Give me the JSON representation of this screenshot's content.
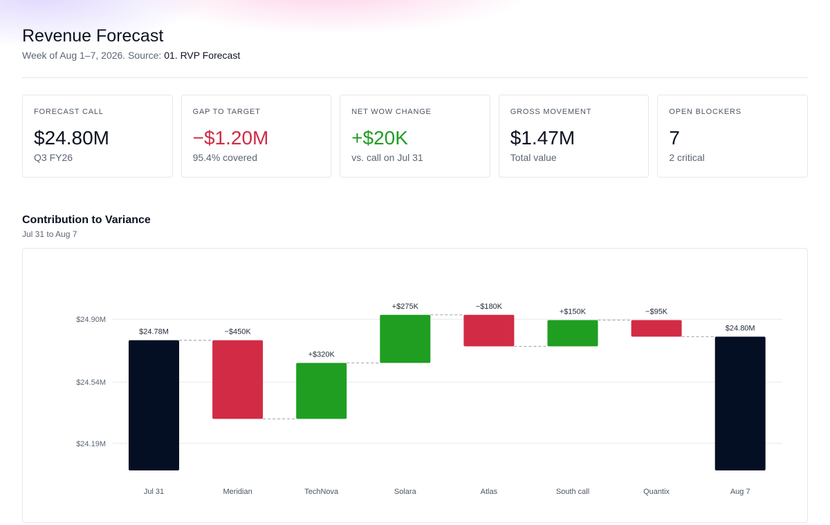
{
  "header": {
    "title": "Revenue Forecast",
    "subtitle_prefix": "Week of Aug 1–7, 2026. Source: ",
    "source": "01. RVP Forecast"
  },
  "kpis": [
    {
      "label": "FORECAST CALL",
      "value": "$24.80M",
      "sub": "Q3 FY26",
      "tone": "neutral"
    },
    {
      "label": "GAP TO TARGET",
      "value": "−$1.20M",
      "sub": "95.4% covered",
      "tone": "negative"
    },
    {
      "label": "NET WOW CHANGE",
      "value": "+$20K",
      "sub": "vs. call on Jul 31",
      "tone": "positive"
    },
    {
      "label": "GROSS MOVEMENT",
      "value": "$1.47M",
      "sub": "Total value",
      "tone": "neutral"
    },
    {
      "label": "OPEN BLOCKERS",
      "value": "7",
      "sub": "2 critical",
      "tone": "neutral"
    }
  ],
  "section": {
    "title": "Contribution to Variance",
    "subtitle": "Jul 31 to Aug 7"
  },
  "colors": {
    "total": "#050f24",
    "increase": "#1f9e22",
    "decrease": "#d22b45",
    "grid": "#e6e8ec",
    "connector": "#9aa1ab"
  },
  "chart_data": {
    "type": "bar",
    "subtype": "waterfall",
    "categories": [
      "Jul 31",
      "Meridian",
      "TechNova",
      "Solara",
      "Atlas",
      "South call",
      "Quantix",
      "Aug 7"
    ],
    "steps": [
      {
        "category": "Jul 31",
        "kind": "total",
        "value": 24.78,
        "label": "$24.78M"
      },
      {
        "category": "Meridian",
        "kind": "delta",
        "value": -0.45,
        "label": "−$450K"
      },
      {
        "category": "TechNova",
        "kind": "delta",
        "value": 0.32,
        "label": "+$320K"
      },
      {
        "category": "Solara",
        "kind": "delta",
        "value": 0.275,
        "label": "+$275K"
      },
      {
        "category": "Atlas",
        "kind": "delta",
        "value": -0.18,
        "label": "−$180K"
      },
      {
        "category": "South call",
        "kind": "delta",
        "value": 0.15,
        "label": "+$150K"
      },
      {
        "category": "Quantix",
        "kind": "delta",
        "value": -0.095,
        "label": "−$95K"
      },
      {
        "category": "Aug 7",
        "kind": "total",
        "value": 24.8,
        "label": "$24.80M"
      }
    ],
    "yticks": [
      24.19,
      24.54,
      24.9
    ],
    "ytick_labels": [
      "$24.19M",
      "$24.54M",
      "$24.90M"
    ],
    "ylim": [
      24.035,
      24.94
    ],
    "grid": true,
    "connectors": true
  }
}
